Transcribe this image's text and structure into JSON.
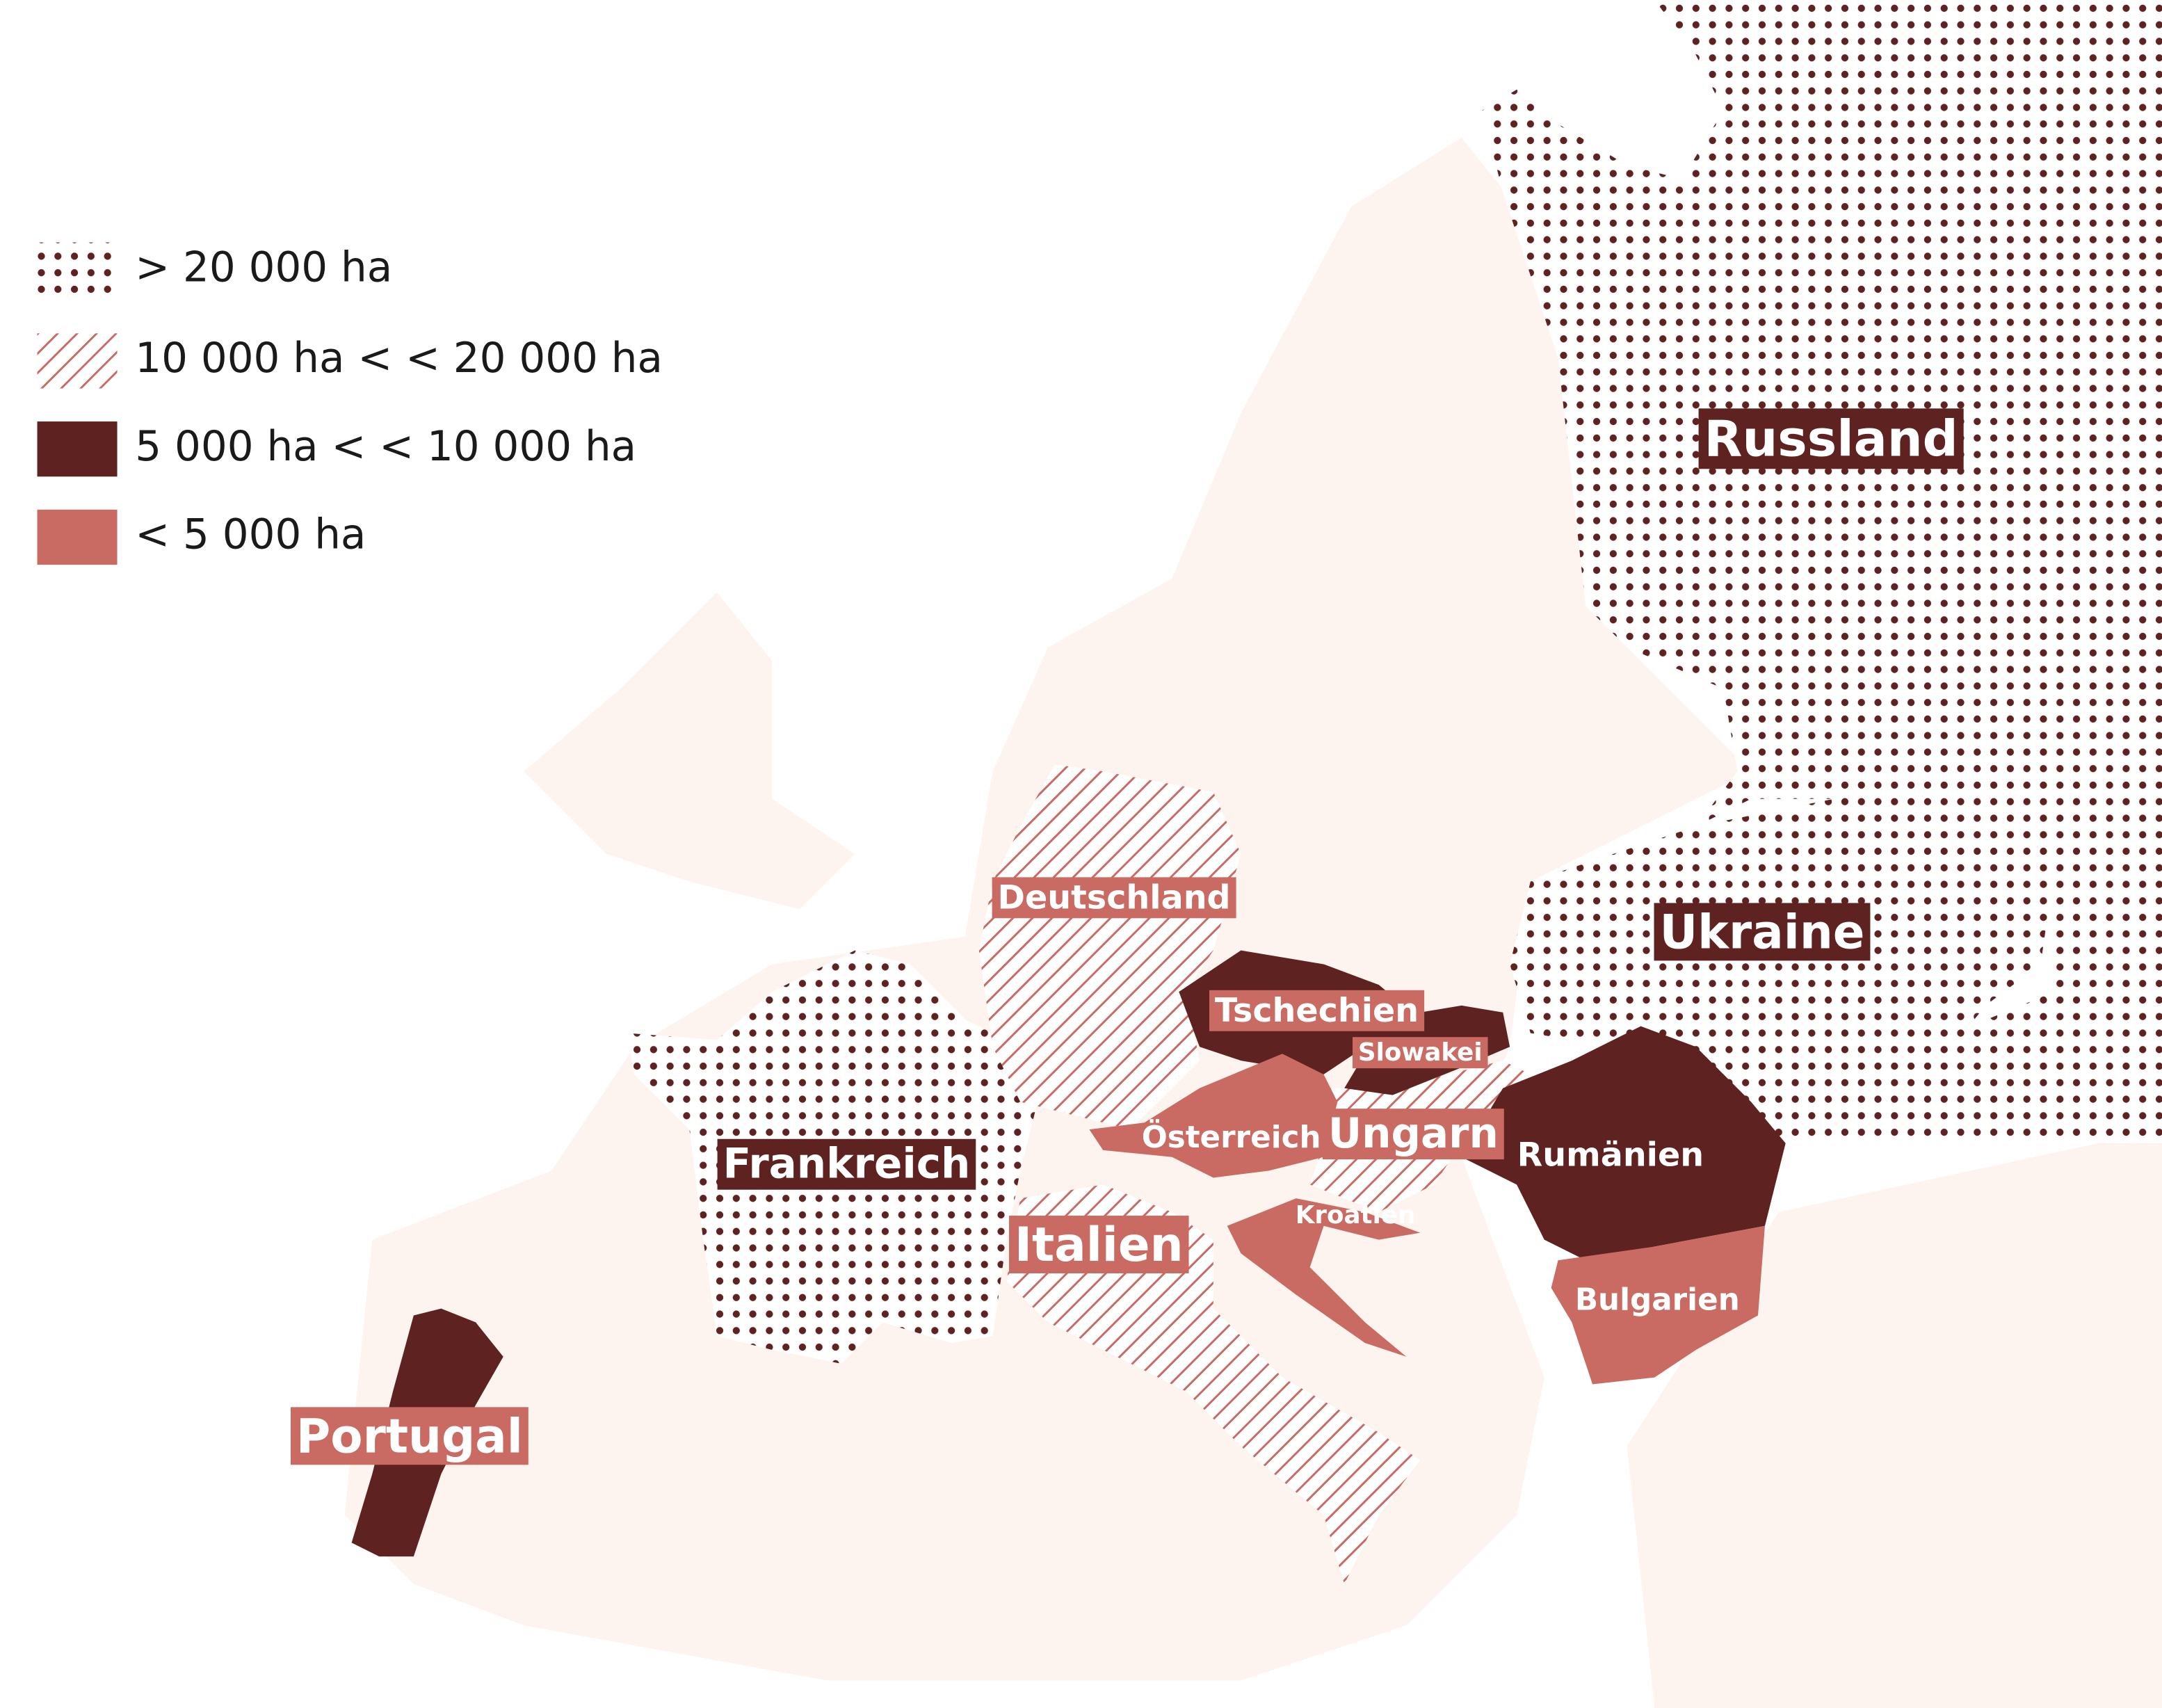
{
  "legend": [
    {
      "label": "> 20 000 ha",
      "countries": [
        "Russland",
        "Ukraine",
        "Frankreich"
      ]
    },
    {
      "label": "10 000 ha < < 20 000 ha",
      "countries": [
        "Deutschland",
        "Italien",
        "Ungarn"
      ]
    },
    {
      "label": "5 000 ha < < 10 000 ha",
      "countries": [
        "Portugal",
        "Tschechien",
        "Slowakei",
        "Rumänien"
      ]
    },
    {
      "label": "< 5 000 ha",
      "countries": [
        "Österreich",
        "Kroatien",
        "Bulgarien"
      ]
    }
  ]
}
